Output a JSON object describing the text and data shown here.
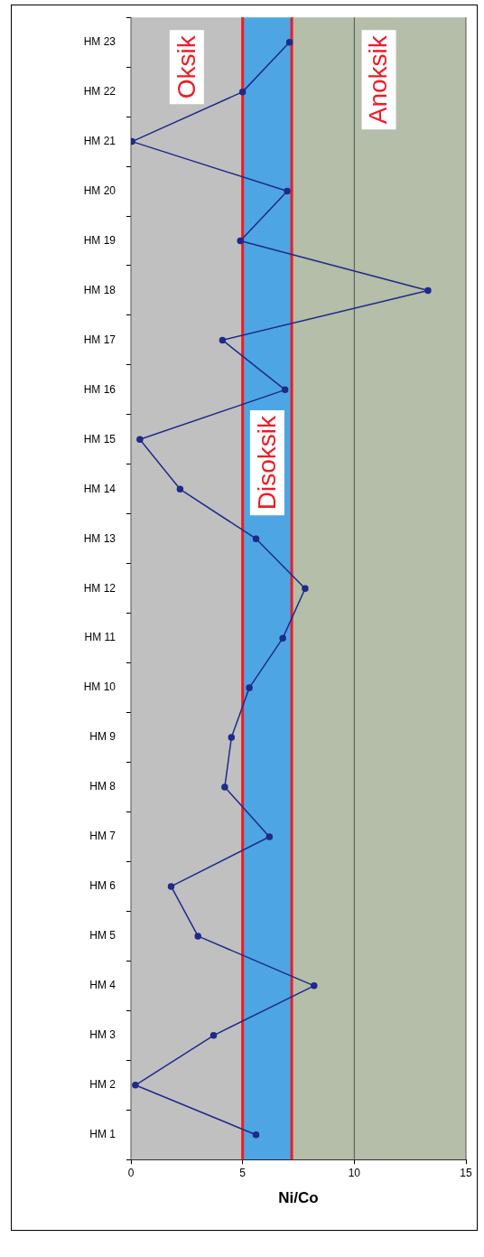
{
  "chart_data": {
    "type": "line",
    "orientation": "horizontal",
    "xlabel": "Ni/Co",
    "categories": [
      "HM 23",
      "HM 22",
      "HM 21",
      "HM 20",
      "HM 19",
      "HM 18",
      "HM 17",
      "HM 16",
      "HM 15",
      "HM 14",
      "HM 13",
      "HM 12",
      "HM 11",
      "HM 10",
      "HM 9",
      "HM 8",
      "HM 7",
      "HM 6",
      "HM 5",
      "HM 4",
      "HM 3",
      "HM 2",
      "HM 1"
    ],
    "series": [
      {
        "color": "#1f2a8a",
        "values": [
          7.1,
          5.0,
          0.05,
          7.0,
          4.9,
          13.3,
          4.1,
          6.9,
          0.4,
          2.2,
          5.6,
          7.8,
          6.8,
          5.3,
          4.5,
          4.2,
          6.2,
          1.8,
          3.0,
          8.2,
          3.7,
          0.2,
          5.6
        ]
      }
    ],
    "xlim": [
      0,
      15
    ],
    "xticks": [
      0,
      5,
      10,
      15
    ],
    "bands": [
      {
        "axis": "x",
        "from": 0,
        "to": 5,
        "label": "Oksik",
        "color": "#c0c0c0"
      },
      {
        "axis": "x",
        "from": 5,
        "to": 7.2,
        "label": "Disoksik",
        "color": "#4da6e3"
      },
      {
        "axis": "x",
        "from": 7.2,
        "to": 15,
        "label": "Anoksik",
        "color": "#b4bea8"
      }
    ],
    "ref_lines": [
      {
        "axis": "x",
        "value": 5,
        "color": "#ee1c25"
      },
      {
        "axis": "x",
        "value": 7.2,
        "color": "#ee1c25"
      }
    ],
    "grid": "x",
    "legend": false,
    "marker": "circle",
    "line_style": "solid"
  }
}
